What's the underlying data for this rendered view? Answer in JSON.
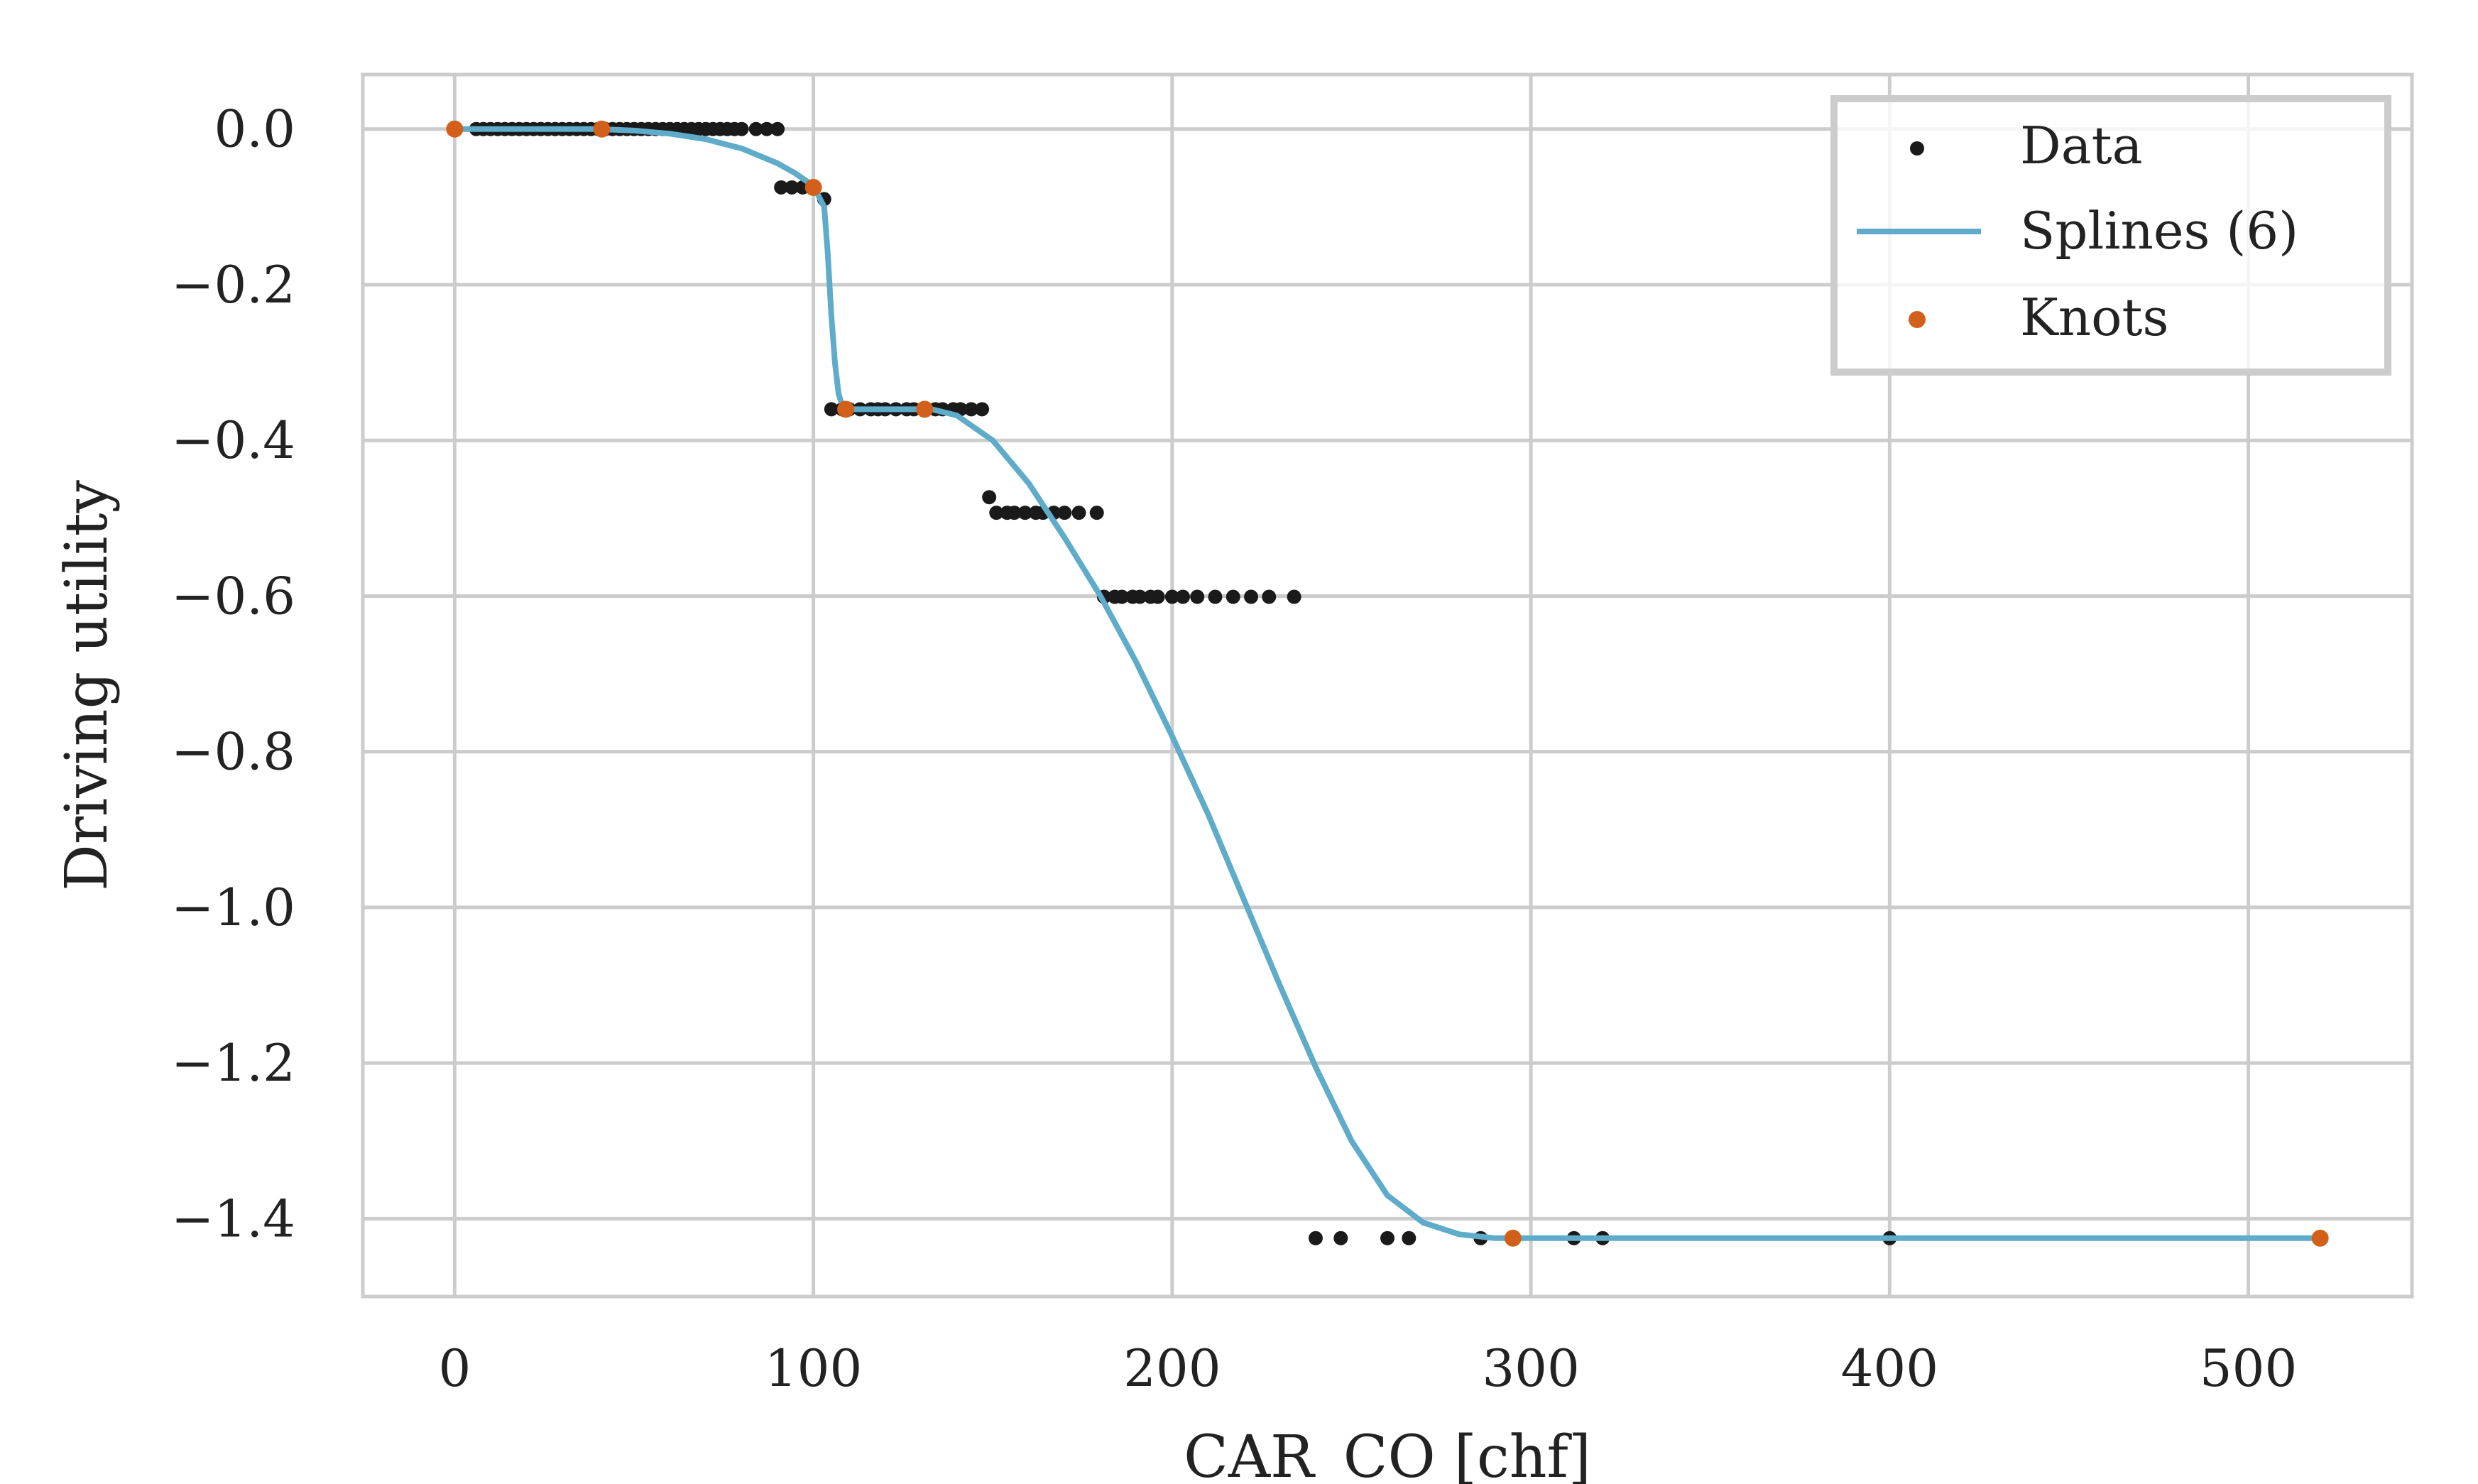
{
  "chart_data": {
    "type": "scatter",
    "title": "",
    "xlabel": "CAR_CO [chf]",
    "ylabel": "Driving utility",
    "xlim": [
      -25.6,
      545.6
    ],
    "ylim": [
      -1.5,
      0.07
    ],
    "xticks": [
      0,
      100,
      200,
      300,
      400,
      500
    ],
    "yticks": [
      0.0,
      -0.2,
      -0.4,
      -0.6,
      -0.8,
      -1.0,
      -1.2,
      -1.4
    ],
    "grid": true,
    "legend_position": "top-right",
    "colors": {
      "data": "#1a1a1a",
      "spline": "#5eacc9",
      "knots": "#d2601a",
      "grid": "#cccccc",
      "frame": "#cccccc"
    },
    "series": [
      {
        "name": "Data",
        "kind": "points",
        "points": [
          [
            0,
            0
          ],
          [
            6,
            0
          ],
          [
            8,
            0
          ],
          [
            10,
            0
          ],
          [
            12,
            0
          ],
          [
            14,
            0
          ],
          [
            16,
            0
          ],
          [
            18,
            0
          ],
          [
            20,
            0
          ],
          [
            22,
            0
          ],
          [
            24,
            0
          ],
          [
            26,
            0
          ],
          [
            28,
            0
          ],
          [
            30,
            0
          ],
          [
            32,
            0
          ],
          [
            34,
            0
          ],
          [
            36,
            0
          ],
          [
            38,
            0
          ],
          [
            40,
            0
          ],
          [
            42,
            0
          ],
          [
            44,
            0
          ],
          [
            46,
            0
          ],
          [
            48,
            0
          ],
          [
            50,
            0
          ],
          [
            52,
            0
          ],
          [
            54,
            0
          ],
          [
            56,
            0
          ],
          [
            58,
            0
          ],
          [
            60,
            0
          ],
          [
            62,
            0
          ],
          [
            64,
            0
          ],
          [
            66,
            0
          ],
          [
            68,
            0
          ],
          [
            70,
            0
          ],
          [
            72,
            0
          ],
          [
            74,
            0
          ],
          [
            76,
            0
          ],
          [
            78,
            0
          ],
          [
            80,
            0
          ],
          [
            84,
            0
          ],
          [
            87,
            0
          ],
          [
            90,
            0
          ],
          [
            91,
            -0.075
          ],
          [
            94,
            -0.075
          ],
          [
            97,
            -0.075
          ],
          [
            100,
            -0.075
          ],
          [
            103,
            -0.09
          ],
          [
            105,
            -0.36
          ],
          [
            108,
            -0.36
          ],
          [
            110,
            -0.36
          ],
          [
            113,
            -0.36
          ],
          [
            116,
            -0.36
          ],
          [
            118,
            -0.36
          ],
          [
            120,
            -0.36
          ],
          [
            123,
            -0.36
          ],
          [
            126,
            -0.36
          ],
          [
            128,
            -0.36
          ],
          [
            131,
            -0.36
          ],
          [
            134,
            -0.36
          ],
          [
            136,
            -0.36
          ],
          [
            139,
            -0.36
          ],
          [
            141,
            -0.36
          ],
          [
            144,
            -0.36
          ],
          [
            147,
            -0.36
          ],
          [
            149,
            -0.473
          ],
          [
            151,
            -0.493
          ],
          [
            154,
            -0.493
          ],
          [
            156,
            -0.493
          ],
          [
            159,
            -0.493
          ],
          [
            162,
            -0.493
          ],
          [
            164,
            -0.493
          ],
          [
            167,
            -0.493
          ],
          [
            170,
            -0.493
          ],
          [
            174,
            -0.493
          ],
          [
            179,
            -0.493
          ],
          [
            181,
            -0.601
          ],
          [
            184,
            -0.601
          ],
          [
            186,
            -0.601
          ],
          [
            189,
            -0.601
          ],
          [
            191,
            -0.601
          ],
          [
            194,
            -0.601
          ],
          [
            196,
            -0.601
          ],
          [
            200,
            -0.601
          ],
          [
            203,
            -0.601
          ],
          [
            207,
            -0.601
          ],
          [
            212,
            -0.601
          ],
          [
            217,
            -0.601
          ],
          [
            222,
            -0.601
          ],
          [
            227,
            -0.601
          ],
          [
            234,
            -0.601
          ],
          [
            240,
            -1.425
          ],
          [
            247,
            -1.425
          ],
          [
            260,
            -1.425
          ],
          [
            266,
            -1.425
          ],
          [
            286,
            -1.425
          ],
          [
            312,
            -1.425
          ],
          [
            320,
            -1.425
          ],
          [
            400,
            -1.425
          ],
          [
            520,
            -1.425
          ]
        ]
      },
      {
        "name": "Splines (6)",
        "kind": "line",
        "points": [
          [
            0,
            0
          ],
          [
            10,
            0
          ],
          [
            20,
            0
          ],
          [
            30,
            0
          ],
          [
            40,
            0
          ],
          [
            50,
            -0.002
          ],
          [
            60,
            -0.006
          ],
          [
            70,
            -0.013
          ],
          [
            80,
            -0.025
          ],
          [
            90,
            -0.044
          ],
          [
            95,
            -0.057
          ],
          [
            100,
            -0.073
          ],
          [
            103,
            -0.1
          ],
          [
            104,
            -0.16
          ],
          [
            105,
            -0.24
          ],
          [
            106,
            -0.3
          ],
          [
            107,
            -0.34
          ],
          [
            108,
            -0.355
          ],
          [
            110,
            -0.36
          ],
          [
            120,
            -0.36
          ],
          [
            130,
            -0.36
          ],
          [
            133,
            -0.36
          ],
          [
            140,
            -0.368
          ],
          [
            150,
            -0.4
          ],
          [
            160,
            -0.455
          ],
          [
            170,
            -0.525
          ],
          [
            180,
            -0.6
          ],
          [
            190,
            -0.685
          ],
          [
            200,
            -0.78
          ],
          [
            210,
            -0.88
          ],
          [
            220,
            -0.99
          ],
          [
            230,
            -1.1
          ],
          [
            240,
            -1.205
          ],
          [
            250,
            -1.3
          ],
          [
            260,
            -1.37
          ],
          [
            270,
            -1.405
          ],
          [
            280,
            -1.42
          ],
          [
            290,
            -1.425
          ],
          [
            295,
            -1.425
          ],
          [
            350,
            -1.425
          ],
          [
            400,
            -1.425
          ],
          [
            450,
            -1.425
          ],
          [
            520,
            -1.425
          ]
        ]
      },
      {
        "name": "Knots",
        "kind": "points",
        "points": [
          [
            0,
            0
          ],
          [
            41,
            0
          ],
          [
            100,
            -0.075
          ],
          [
            109,
            -0.36
          ],
          [
            131,
            -0.36
          ],
          [
            295,
            -1.425
          ],
          [
            520,
            -1.425
          ]
        ]
      }
    ]
  }
}
